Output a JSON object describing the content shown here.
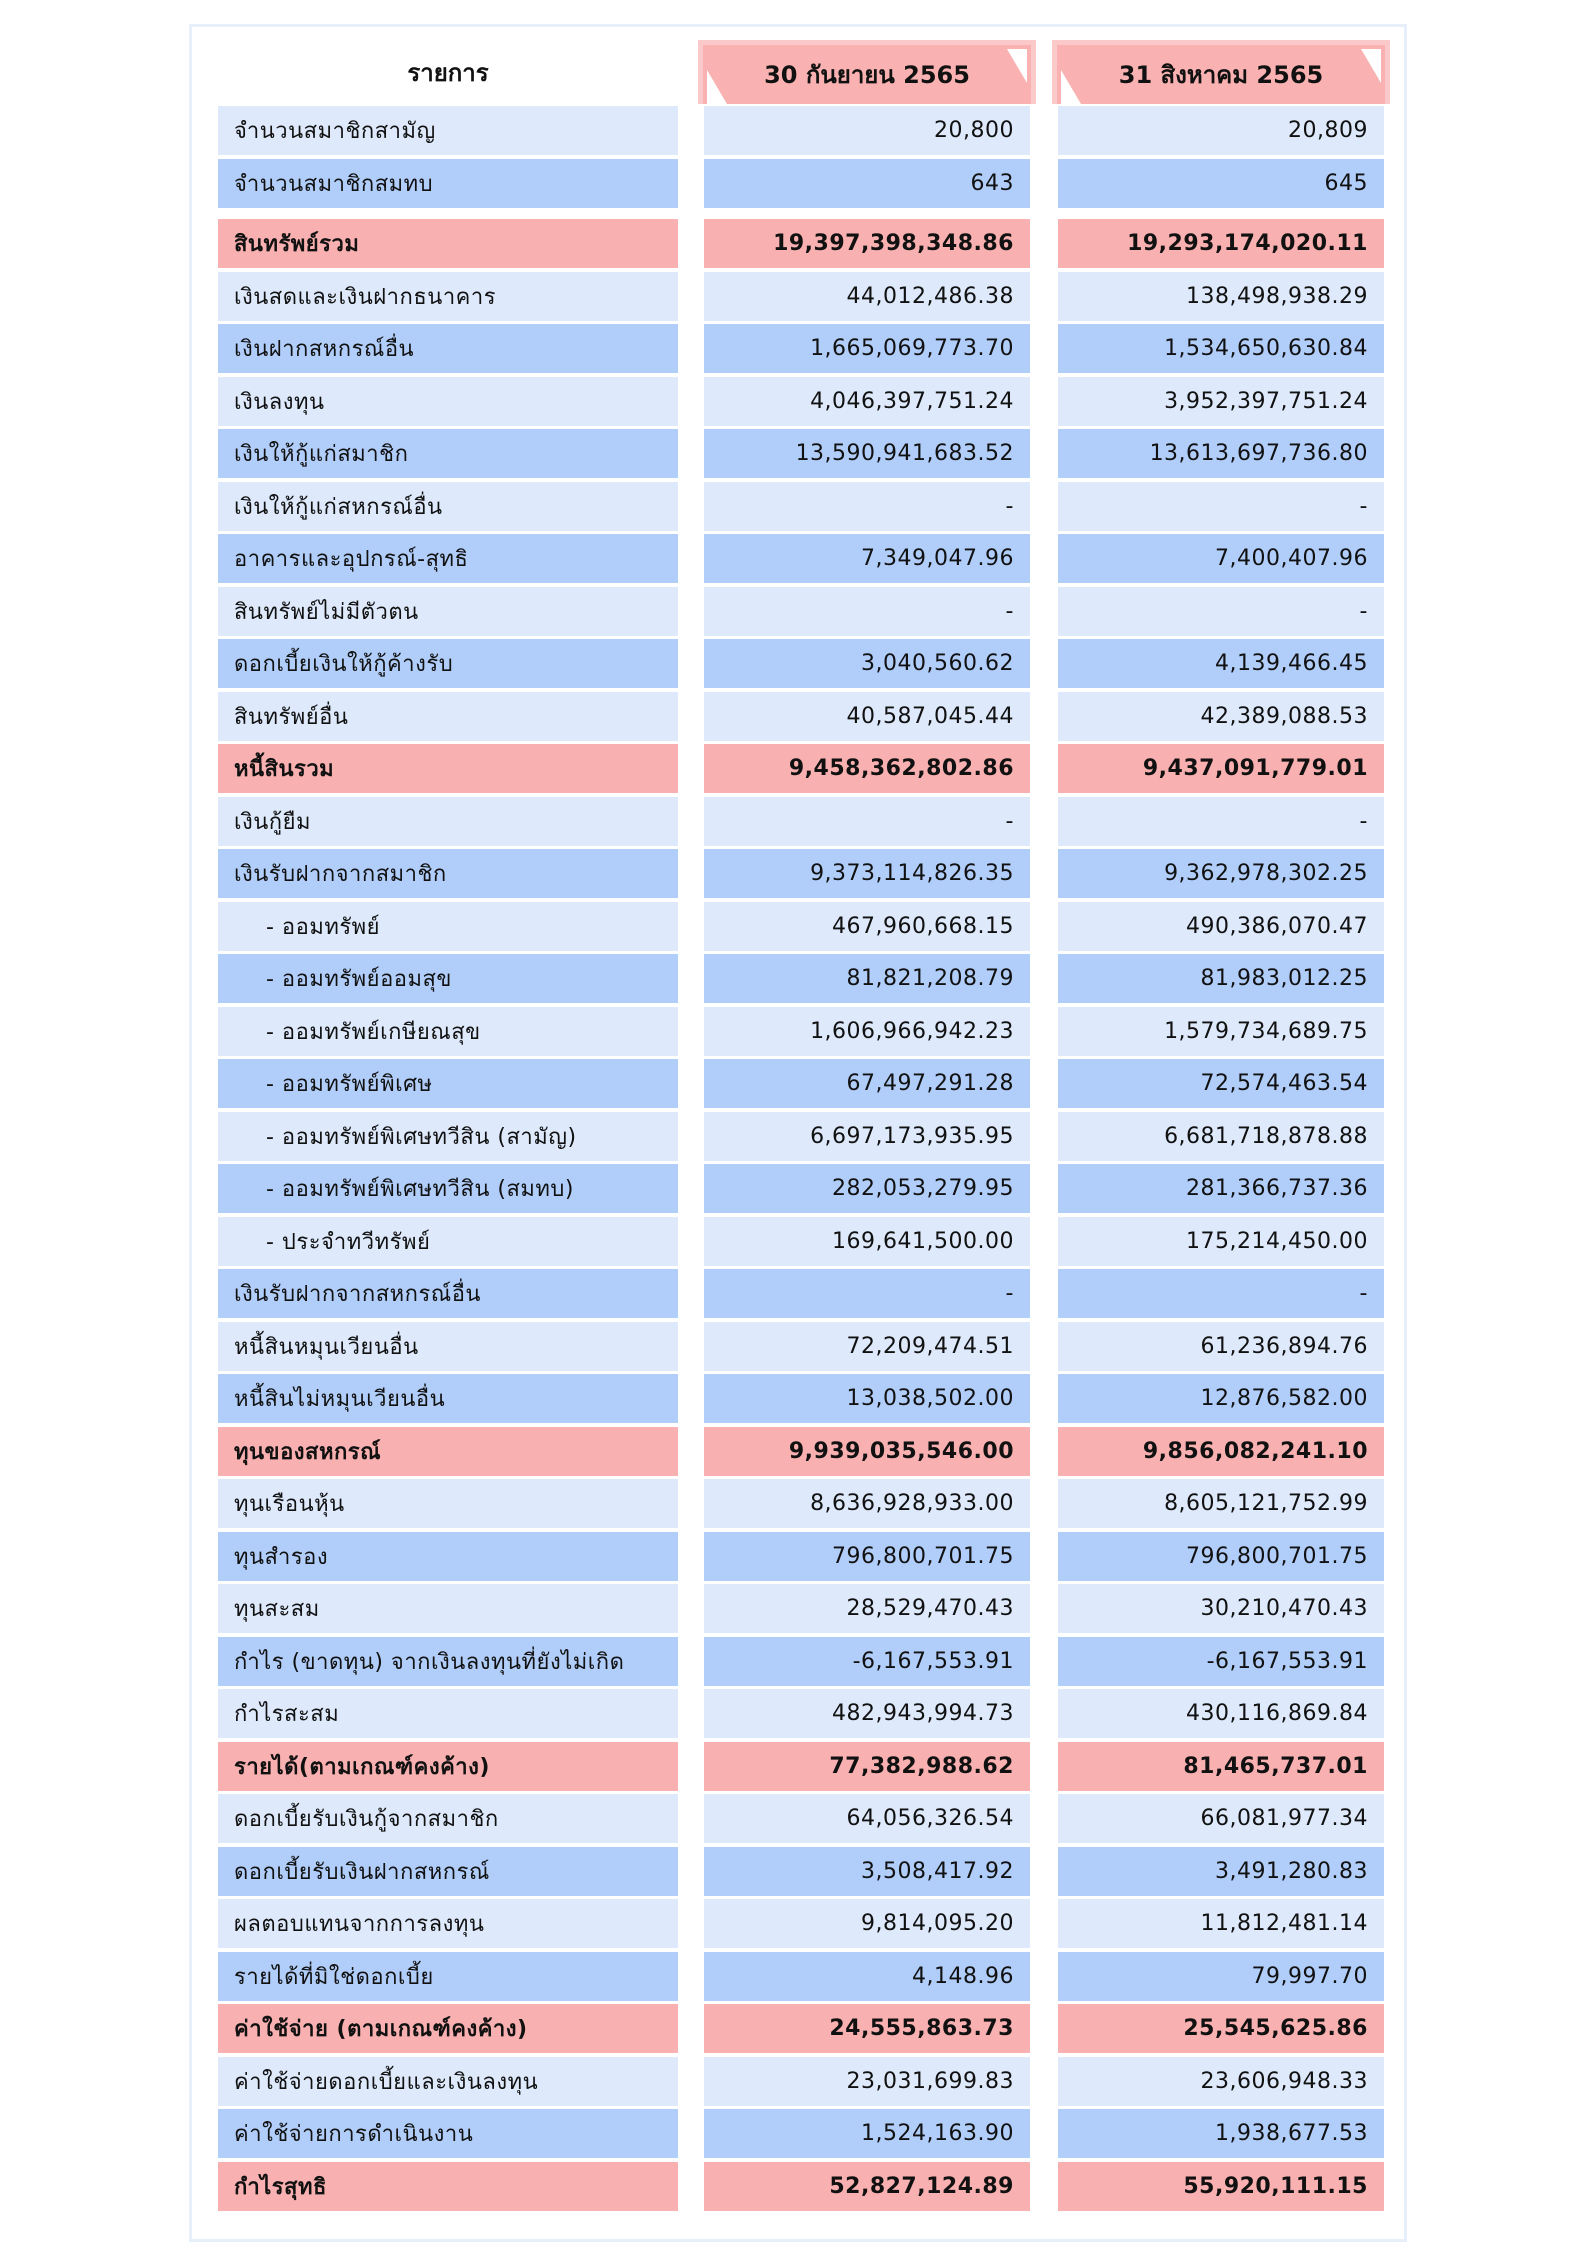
{
  "header": {
    "label": "รายการ",
    "col1": "30 กันยายน 2565",
    "col2": "31 สิงหาคม 2565"
  },
  "colors": {
    "light": "#deeafc",
    "blue": "#b1cefa",
    "total": "#f9b0b0"
  },
  "members": [
    {
      "label": "จำนวนสมาชิกสามัญ",
      "v1": "20,800",
      "v2": "20,809"
    },
    {
      "label": "จำนวนสมาชิกสมทบ",
      "v1": "643",
      "v2": "645"
    }
  ],
  "rows": [
    {
      "label": "สินทรัพย์รวม",
      "v1": "19,397,398,348.86",
      "v2": "19,293,174,020.11",
      "total": true
    },
    {
      "label": "เงินสดและเงินฝากธนาคาร",
      "v1": "44,012,486.38",
      "v2": "138,498,938.29"
    },
    {
      "label": "เงินฝากสหกรณ์อื่น",
      "v1": "1,665,069,773.70",
      "v2": "1,534,650,630.84"
    },
    {
      "label": "เงินลงทุน",
      "v1": "4,046,397,751.24",
      "v2": "3,952,397,751.24"
    },
    {
      "label": "เงินให้กู้แก่สมาชิก",
      "v1": "13,590,941,683.52",
      "v2": "13,613,697,736.80"
    },
    {
      "label": "เงินให้กู้แก่สหกรณ์อื่น",
      "v1": "-",
      "v2": "-"
    },
    {
      "label": "อาคารและอุปกรณ์-สุทธิ",
      "v1": "7,349,047.96",
      "v2": "7,400,407.96"
    },
    {
      "label": "สินทรัพย์ไม่มีตัวตน",
      "v1": "-",
      "v2": "-"
    },
    {
      "label": "ดอกเบี้ยเงินให้กู้ค้างรับ",
      "v1": "3,040,560.62",
      "v2": "4,139,466.45"
    },
    {
      "label": "สินทรัพย์อื่น",
      "v1": "40,587,045.44",
      "v2": "42,389,088.53"
    },
    {
      "label": "หนี้สินรวม",
      "v1": "9,458,362,802.86",
      "v2": "9,437,091,779.01",
      "total": true
    },
    {
      "label": "เงินกู้ยืม",
      "v1": "-",
      "v2": "-"
    },
    {
      "label": "เงินรับฝากจากสมาชิก",
      "v1": "9,373,114,826.35",
      "v2": "9,362,978,302.25"
    },
    {
      "label": "- ออมทรัพย์",
      "v1": "467,960,668.15",
      "v2": "490,386,070.47",
      "sub": true
    },
    {
      "label": "- ออมทรัพย์ออมสุข",
      "v1": "81,821,208.79",
      "v2": "81,983,012.25",
      "sub": true
    },
    {
      "label": "- ออมทรัพย์เกษียณสุข",
      "v1": "1,606,966,942.23",
      "v2": "1,579,734,689.75",
      "sub": true
    },
    {
      "label": "- ออมทรัพย์พิเศษ",
      "v1": "67,497,291.28",
      "v2": "72,574,463.54",
      "sub": true
    },
    {
      "label": "- ออมทรัพย์พิเศษทวีสิน (สามัญ)",
      "v1": "6,697,173,935.95",
      "v2": "6,681,718,878.88",
      "sub": true
    },
    {
      "label": "- ออมทรัพย์พิเศษทวีสิน (สมทบ)",
      "v1": "282,053,279.95",
      "v2": "281,366,737.36",
      "sub": true
    },
    {
      "label": "- ประจำทวีทรัพย์",
      "v1": "169,641,500.00",
      "v2": "175,214,450.00",
      "sub": true
    },
    {
      "label": "เงินรับฝากจากสหกรณ์อื่น",
      "v1": "-",
      "v2": "-"
    },
    {
      "label": "หนี้สินหมุนเวียนอื่น",
      "v1": "72,209,474.51",
      "v2": "61,236,894.76"
    },
    {
      "label": "หนี้สินไม่หมุนเวียนอื่น",
      "v1": "13,038,502.00",
      "v2": "12,876,582.00"
    },
    {
      "label": "ทุนของสหกรณ์",
      "v1": "9,939,035,546.00",
      "v2": "9,856,082,241.10",
      "total": true
    },
    {
      "label": "ทุนเรือนหุ้น",
      "v1": "8,636,928,933.00",
      "v2": "8,605,121,752.99"
    },
    {
      "label": "ทุนสำรอง",
      "v1": "796,800,701.75",
      "v2": "796,800,701.75"
    },
    {
      "label": "ทุนสะสม",
      "v1": "28,529,470.43",
      "v2": "30,210,470.43"
    },
    {
      "label": "กำไร (ขาดทุน) จากเงินลงทุนที่ยังไม่เกิด",
      "v1": "-6,167,553.91",
      "v2": "-6,167,553.91"
    },
    {
      "label": "กำไรสะสม",
      "v1": "482,943,994.73",
      "v2": "430,116,869.84"
    },
    {
      "label": "รายได้(ตามเกณฑ์คงค้าง)",
      "v1": "77,382,988.62",
      "v2": "81,465,737.01",
      "total": true
    },
    {
      "label": "ดอกเบี้ยรับเงินกู้จากสมาชิก",
      "v1": "64,056,326.54",
      "v2": "66,081,977.34"
    },
    {
      "label": "ดอกเบี้ยรับเงินฝากสหกรณ์",
      "v1": "3,508,417.92",
      "v2": "3,491,280.83"
    },
    {
      "label": "ผลตอบแทนจากการลงทุน",
      "v1": "9,814,095.20",
      "v2": "11,812,481.14"
    },
    {
      "label": "รายได้ที่มิใช่ดอกเบี้ย",
      "v1": "4,148.96",
      "v2": "79,997.70"
    },
    {
      "label": "ค่าใช้จ่าย (ตามเกณฑ์คงค้าง)",
      "v1": "24,555,863.73",
      "v2": "25,545,625.86",
      "total": true
    },
    {
      "label": "ค่าใช้จ่ายดอกเบี้ยและเงินลงทุน",
      "v1": "23,031,699.83",
      "v2": "23,606,948.33"
    },
    {
      "label": "ค่าใช้จ่ายการดำเนินงาน",
      "v1": "1,524,163.90",
      "v2": "1,938,677.53"
    },
    {
      "label": "กำไรสุทธิ",
      "v1": "52,827,124.89",
      "v2": "55,920,111.15",
      "total": true
    }
  ]
}
